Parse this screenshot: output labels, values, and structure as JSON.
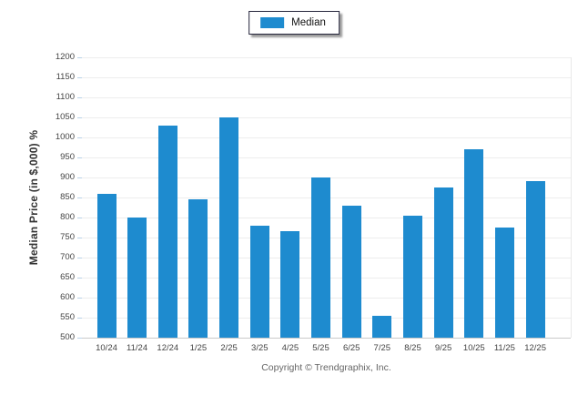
{
  "legend": {
    "label": "Median",
    "swatch_color": "#1E8BCF"
  },
  "chart_data": {
    "type": "bar",
    "title": "",
    "categories": [
      "10/24",
      "11/24",
      "12/24",
      "1/25",
      "2/25",
      "3/25",
      "4/25",
      "5/25",
      "6/25",
      "7/25",
      "8/25",
      "9/25",
      "10/25",
      "11/25",
      "12/25"
    ],
    "series": [
      {
        "name": "Median",
        "values": [
          860,
          800,
          1030,
          845,
          1050,
          780,
          765,
          900,
          830,
          555,
          805,
          875,
          970,
          775,
          890
        ]
      }
    ],
    "xlabel": "",
    "ylabel": "Median Price (in $,000) %",
    "ylim": [
      500,
      1200
    ],
    "ytick_step": 50,
    "bar_color": "#1E8BCF",
    "grid": "horizontal",
    "legend_position": "top-center"
  },
  "footer": {
    "copyright": "Copyright © Trendgraphix, Inc."
  }
}
